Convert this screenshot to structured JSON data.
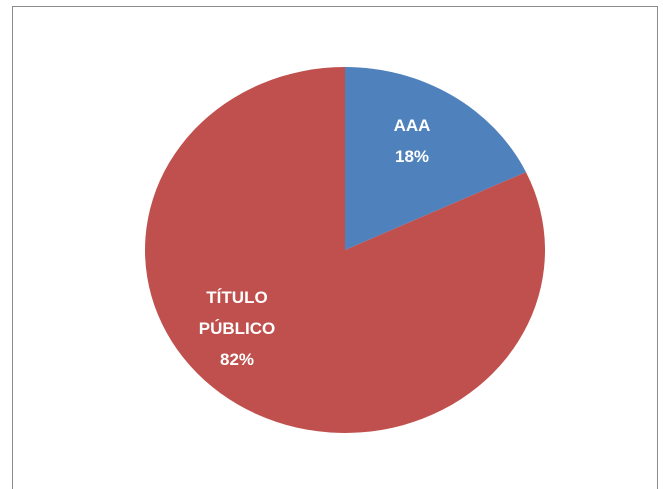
{
  "chart_data": {
    "type": "pie",
    "categories": [
      "AAA",
      "TÍTULO PÚBLICO"
    ],
    "values": [
      18,
      82
    ],
    "value_labels": [
      "18%",
      "82%"
    ],
    "colors": [
      "#4f81bd",
      "#c0504d"
    ]
  }
}
